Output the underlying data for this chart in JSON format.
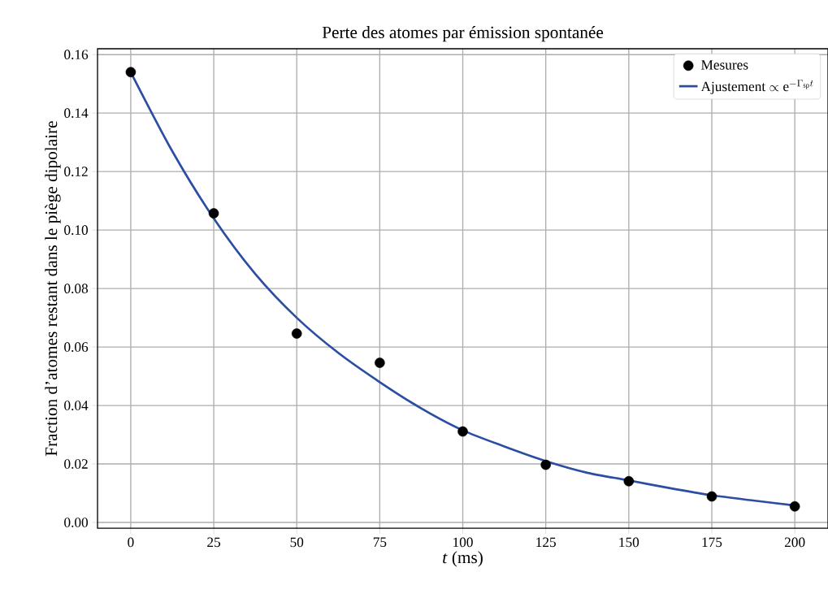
{
  "chart_data": {
    "type": "scatter",
    "title": "Perte des atomes par émission spontanée",
    "xlabel": "*t* (ms)",
    "ylabel": "Fraction d’atomes restant dans le piège dipolaire",
    "xlim": [
      -10,
      210
    ],
    "ylim": [
      -0.002,
      0.162
    ],
    "xticks": [
      0,
      25,
      50,
      75,
      100,
      125,
      150,
      175,
      200
    ],
    "yticks": [
      {
        "value": 0,
        "label": "0.00"
      },
      {
        "value": 0.02,
        "label": "0.02"
      },
      {
        "value": 0.04,
        "label": "0.04"
      },
      {
        "value": 0.06,
        "label": "0.06"
      },
      {
        "value": 0.08,
        "label": "0.08"
      },
      {
        "value": 0.1,
        "label": "0.10"
      },
      {
        "value": 0.12,
        "label": "0.12"
      },
      {
        "value": 0.14,
        "label": "0.14"
      },
      {
        "value": 0.16,
        "label": "0.16"
      }
    ],
    "grid": true,
    "legend": "top right",
    "series": [
      {
        "name": "Mesures",
        "type": "scatter",
        "marker": "circle",
        "color": "#000000",
        "x": [
          0,
          25,
          50,
          75,
          100,
          125,
          150,
          175,
          200
        ],
        "values": [
          0.154,
          0.1057,
          0.0646,
          0.0546,
          0.0311,
          0.0197,
          0.0141,
          0.0089,
          0.0055
        ]
      },
      {
        "name": "\\textrm{Ajustement} \\propto \\mathrm{e}^{-\\Gamma_{\\mathrm{sp}} t}",
        "type": "line",
        "marker": "none",
        "color": "#2b4ea2",
        "x": [
          0,
          12.5,
          25,
          37.5,
          50,
          62.5,
          75,
          87.5,
          100,
          112.5,
          125,
          137.5,
          150,
          162.5,
          175,
          187.5,
          200
        ],
        "values": [
          0.154,
          0.127,
          0.104,
          0.085,
          0.07,
          0.058,
          0.048,
          0.039,
          0.0315,
          0.026,
          0.021,
          0.017,
          0.0144,
          0.0117,
          0.0093,
          0.0075,
          0.0058
        ]
      }
    ]
  }
}
